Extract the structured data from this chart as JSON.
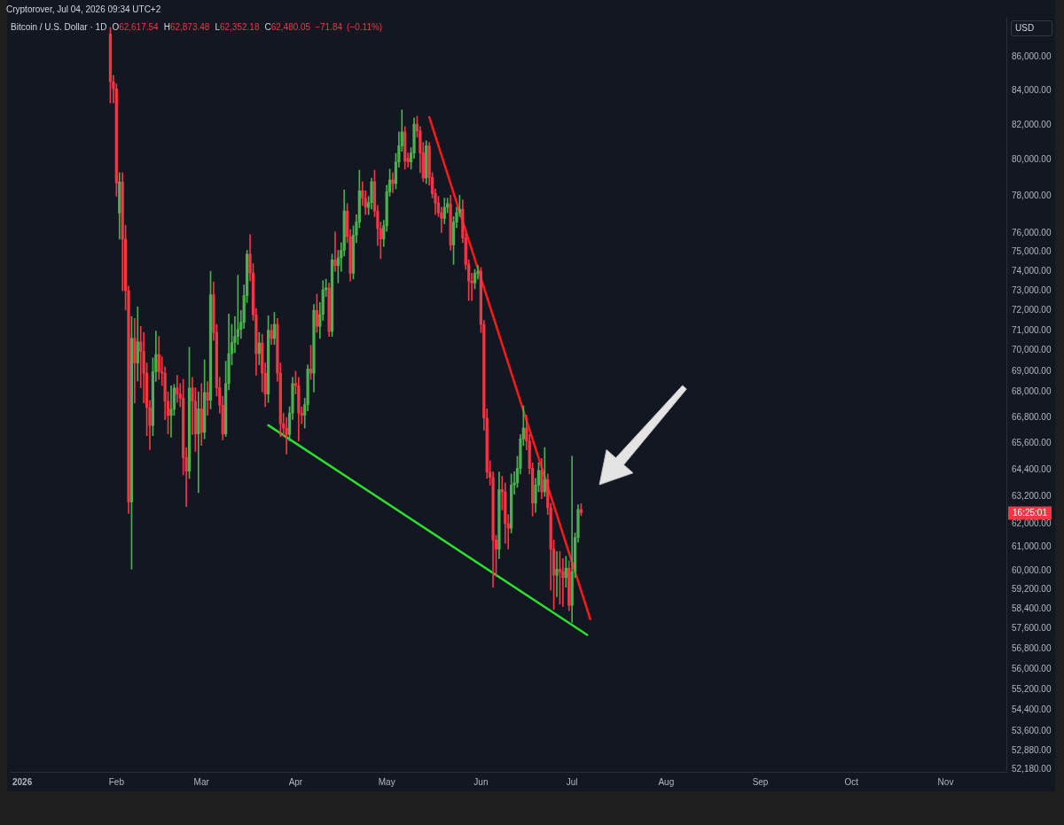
{
  "chart_data": {
    "type": "candlestick",
    "title": "Bitcoin / U.S. Dollar · 1D",
    "subtitle": "O62,617.54 H62,873.48 L62,352.18 C62,480.05 −71.84 (−0.11%)",
    "ylabel": "USD",
    "annotations": [
      "Cryptorover, Jul 04, 2026 09:34 UTC+2",
      "16:25:01"
    ],
    "log": "y",
    "xlim": [
      "2025-12-28",
      "2026-11-21"
    ],
    "xticks": [
      {
        "value": "2026-01-01",
        "label": "2026"
      },
      {
        "value": "2026-02-01",
        "label": "Feb"
      },
      {
        "value": "2026-03-01",
        "label": "Mar"
      },
      {
        "value": "2026-04-01",
        "label": "Apr"
      },
      {
        "value": "2026-05-01",
        "label": "May"
      },
      {
        "value": "2026-06-01",
        "label": "Jun"
      },
      {
        "value": "2026-07-01",
        "label": "Jul"
      },
      {
        "value": "2026-08-01",
        "label": "Aug"
      },
      {
        "value": "2026-09-01",
        "label": "Sep"
      },
      {
        "value": "2026-10-01",
        "label": "Oct"
      },
      {
        "value": "2026-11-01",
        "label": "Nov"
      }
    ],
    "ylim": [
      52100,
      88400
    ],
    "yticks": [
      {
        "value": 86000,
        "label": "86,000.00"
      },
      {
        "value": 84000,
        "label": "84,000.00"
      },
      {
        "value": 82000,
        "label": "82,000.00"
      },
      {
        "value": 80000,
        "label": "80,000.00"
      },
      {
        "value": 78000,
        "label": "78,000.00"
      },
      {
        "value": 76000,
        "label": "76,000.00"
      },
      {
        "value": 75000,
        "label": "75,000.00"
      },
      {
        "value": 74000,
        "label": "74,000.00"
      },
      {
        "value": 73000,
        "label": "73,000.00"
      },
      {
        "value": 72000,
        "label": "72,000.00"
      },
      {
        "value": 71000,
        "label": "71,000.00"
      },
      {
        "value": 70000,
        "label": "70,000.00"
      },
      {
        "value": 69000,
        "label": "69,000.00"
      },
      {
        "value": 68000,
        "label": "68,000.00"
      },
      {
        "value": 66800,
        "label": "66,800.00"
      },
      {
        "value": 65600,
        "label": "65,600.00"
      },
      {
        "value": 64400,
        "label": "64,400.00"
      },
      {
        "value": 63200,
        "label": "63,200.00"
      },
      {
        "value": 62000,
        "label": "62,000.00"
      },
      {
        "value": 61000,
        "label": "61,000.00"
      },
      {
        "value": 60000,
        "label": "60,000.00"
      },
      {
        "value": 59200,
        "label": "59,200.00"
      },
      {
        "value": 58400,
        "label": "58,400.00"
      },
      {
        "value": 57600,
        "label": "57,600.00"
      },
      {
        "value": 56800,
        "label": "56,800.00"
      },
      {
        "value": 56000,
        "label": "56,000.00"
      },
      {
        "value": 55200,
        "label": "55,200.00"
      },
      {
        "value": 54400,
        "label": "54,400.00"
      },
      {
        "value": 53600,
        "label": "53,600.00"
      },
      {
        "value": 52880,
        "label": "52,880.00"
      },
      {
        "value": 52180,
        "label": "52,180.00"
      }
    ],
    "x": [
      "2026-01-30",
      "2026-01-31",
      "2026-02-01",
      "2026-02-02",
      "2026-02-03",
      "2026-02-04",
      "2026-02-05",
      "2026-02-06",
      "2026-02-07",
      "2026-02-08",
      "2026-02-09",
      "2026-02-10",
      "2026-02-11",
      "2026-02-12",
      "2026-02-13",
      "2026-02-14",
      "2026-02-15",
      "2026-02-16",
      "2026-02-17",
      "2026-02-18",
      "2026-02-19",
      "2026-02-20",
      "2026-02-21",
      "2026-02-22",
      "2026-02-23",
      "2026-02-24",
      "2026-02-25",
      "2026-02-26",
      "2026-02-27",
      "2026-02-28",
      "2026-03-01",
      "2026-03-02",
      "2026-03-03",
      "2026-03-04",
      "2026-03-05",
      "2026-03-06",
      "2026-03-07",
      "2026-03-08",
      "2026-03-09",
      "2026-03-10",
      "2026-03-11",
      "2026-03-12",
      "2026-03-13",
      "2026-03-14",
      "2026-03-15",
      "2026-03-16",
      "2026-03-17",
      "2026-03-18",
      "2026-03-19",
      "2026-03-20",
      "2026-03-21",
      "2026-03-22",
      "2026-03-23",
      "2026-03-24",
      "2026-03-25",
      "2026-03-26",
      "2026-03-27",
      "2026-03-28",
      "2026-03-29",
      "2026-03-30",
      "2026-03-31",
      "2026-04-01",
      "2026-04-02",
      "2026-04-03",
      "2026-04-04",
      "2026-04-05",
      "2026-04-06",
      "2026-04-07",
      "2026-04-08",
      "2026-04-09",
      "2026-04-10",
      "2026-04-11",
      "2026-04-12",
      "2026-04-13",
      "2026-04-14",
      "2026-04-15",
      "2026-04-16",
      "2026-04-17",
      "2026-04-18",
      "2026-04-19",
      "2026-04-20",
      "2026-04-21",
      "2026-04-22",
      "2026-04-23",
      "2026-04-24",
      "2026-04-25",
      "2026-04-26",
      "2026-04-27",
      "2026-04-28",
      "2026-04-29",
      "2026-04-30",
      "2026-05-01",
      "2026-05-02",
      "2026-05-03",
      "2026-05-04",
      "2026-05-05",
      "2026-05-06",
      "2026-05-07",
      "2026-05-08",
      "2026-05-09",
      "2026-05-10",
      "2026-05-11",
      "2026-05-12",
      "2026-05-13",
      "2026-05-14",
      "2026-05-15",
      "2026-05-16",
      "2026-05-17",
      "2026-05-18",
      "2026-05-19",
      "2026-05-20",
      "2026-05-21",
      "2026-05-22",
      "2026-05-23",
      "2026-05-24",
      "2026-05-25",
      "2026-05-26",
      "2026-05-27",
      "2026-05-28",
      "2026-05-29",
      "2026-05-30",
      "2026-05-31",
      "2026-06-01",
      "2026-06-02",
      "2026-06-03",
      "2026-06-04",
      "2026-06-05",
      "2026-06-06",
      "2026-06-07",
      "2026-06-08",
      "2026-06-09",
      "2026-06-10",
      "2026-06-11",
      "2026-06-12",
      "2026-06-13",
      "2026-06-14",
      "2026-06-15",
      "2026-06-16",
      "2026-06-17",
      "2026-06-18",
      "2026-06-19",
      "2026-06-20",
      "2026-06-21",
      "2026-06-22",
      "2026-06-23",
      "2026-06-24",
      "2026-06-25",
      "2026-06-26",
      "2026-06-27",
      "2026-06-28",
      "2026-06-29",
      "2026-06-30",
      "2026-07-01",
      "2026-07-02",
      "2026-07-03",
      "2026-07-04"
    ],
    "ohlc": [
      [
        87400,
        87800,
        83270,
        84520
      ],
      [
        84520,
        84900,
        83270,
        84100
      ],
      [
        84100,
        84400,
        78000,
        78730
      ],
      [
        77090,
        79300,
        75690,
        78780
      ],
      [
        78780,
        79300,
        73000,
        75690
      ],
      [
        75690,
        76440,
        72020,
        73000
      ],
      [
        73000,
        73240,
        62450,
        62950
      ],
      [
        62950,
        71700,
        60060,
        70600
      ],
      [
        70600,
        71600,
        67480,
        69390
      ],
      [
        69390,
        72180,
        68530,
        70430
      ],
      [
        70430,
        71200,
        68200,
        69960
      ],
      [
        69960,
        70900,
        67480,
        68900
      ],
      [
        68900,
        69400,
        65950,
        67250
      ],
      [
        67250,
        67600,
        65300,
        66420
      ],
      [
        66420,
        69650,
        65950,
        68970
      ],
      [
        68970,
        70970,
        68500,
        69810
      ],
      [
        69810,
        70700,
        68600,
        68970
      ],
      [
        68970,
        69700,
        68300,
        68900
      ],
      [
        68900,
        69200,
        66690,
        67560
      ],
      [
        67560,
        68000,
        66030,
        66900
      ],
      [
        66900,
        68300,
        65870,
        67180
      ],
      [
        67180,
        68360,
        66900,
        68190
      ],
      [
        68190,
        68800,
        67500,
        67900
      ],
      [
        67900,
        68400,
        67300,
        67700
      ],
      [
        67700,
        68600,
        64160,
        64940
      ],
      [
        64940,
        65400,
        62750,
        64330
      ],
      [
        64330,
        70170,
        64000,
        68190
      ],
      [
        68190,
        68700,
        66000,
        67560
      ],
      [
        67560,
        68200,
        65220,
        66030
      ],
      [
        66030,
        68000,
        63370,
        67200
      ],
      [
        67200,
        68400,
        65500,
        66100
      ],
      [
        66100,
        69550,
        65800,
        67980
      ],
      [
        67980,
        68500,
        66900,
        67600
      ],
      [
        67600,
        74000,
        67200,
        72800
      ],
      [
        72800,
        73450,
        70500,
        70900
      ],
      [
        70900,
        71300,
        67800,
        68200
      ],
      [
        68200,
        68700,
        67000,
        67370
      ],
      [
        67370,
        67800,
        65750,
        66030
      ],
      [
        66030,
        69480,
        65900,
        68400
      ],
      [
        68400,
        71820,
        68100,
        69850
      ],
      [
        69850,
        71300,
        69300,
        70400
      ],
      [
        70400,
        71700,
        69900,
        70700
      ],
      [
        70700,
        73800,
        70300,
        71050
      ],
      [
        71050,
        72000,
        70600,
        71400
      ],
      [
        71400,
        73300,
        71100,
        72750
      ],
      [
        72750,
        75100,
        72400,
        74900
      ],
      [
        74900,
        75930,
        73500,
        73920
      ],
      [
        73920,
        74400,
        71500,
        71780
      ],
      [
        71780,
        72100,
        68800,
        69850
      ],
      [
        69850,
        70900,
        69300,
        70380
      ],
      [
        70380,
        70800,
        68000,
        68900
      ],
      [
        68900,
        69400,
        67300,
        67900
      ],
      [
        67900,
        71730,
        67500,
        71000
      ],
      [
        71000,
        71300,
        70300,
        70600
      ],
      [
        70600,
        71900,
        70300,
        71300
      ],
      [
        71300,
        71600,
        68500,
        68900
      ],
      [
        68900,
        69400,
        65900,
        66500
      ],
      [
        66500,
        67000,
        65900,
        66300
      ],
      [
        66300,
        66800,
        65100,
        66000
      ],
      [
        66000,
        67300,
        65700,
        67000
      ],
      [
        67000,
        68700,
        66700,
        68400
      ],
      [
        68400,
        69000,
        67900,
        68300
      ],
      [
        68300,
        68700,
        65700,
        67000
      ],
      [
        67000,
        67300,
        66500,
        66900
      ],
      [
        66900,
        67700,
        66300,
        67400
      ],
      [
        67400,
        69300,
        67100,
        69100
      ],
      [
        69100,
        70260,
        68600,
        68900
      ],
      [
        68900,
        72300,
        68000,
        72000
      ],
      [
        72000,
        72830,
        70900,
        71200
      ],
      [
        71200,
        72400,
        70600,
        71800
      ],
      [
        71800,
        73520,
        71500,
        73050
      ],
      [
        73050,
        73600,
        72700,
        73150
      ],
      [
        73150,
        73400,
        70700,
        70950
      ],
      [
        70950,
        74900,
        70700,
        74600
      ],
      [
        74600,
        76080,
        74000,
        74300
      ],
      [
        74300,
        75100,
        73400,
        74700
      ],
      [
        74700,
        75500,
        74000,
        75100
      ],
      [
        75100,
        78350,
        74800,
        77200
      ],
      [
        77200,
        77600,
        75500,
        75830
      ],
      [
        75830,
        76200,
        73500,
        73900
      ],
      [
        73900,
        76400,
        73600,
        75900
      ],
      [
        75900,
        77000,
        75500,
        76600
      ],
      [
        76600,
        79440,
        76300,
        78300
      ],
      [
        78300,
        78800,
        77500,
        77900
      ],
      [
        77900,
        78300,
        77000,
        77400
      ],
      [
        77400,
        78000,
        77000,
        77650
      ],
      [
        77650,
        79000,
        77300,
        78800
      ],
      [
        78800,
        79440,
        76900,
        77200
      ],
      [
        77200,
        77500,
        75350,
        76250
      ],
      [
        76250,
        76600,
        74660,
        75700
      ],
      [
        75700,
        76700,
        75300,
        76400
      ],
      [
        76400,
        78600,
        76100,
        78250
      ],
      [
        78250,
        79500,
        78000,
        78900
      ],
      [
        78900,
        79300,
        78200,
        78700
      ],
      [
        78700,
        80380,
        78400,
        79900
      ],
      [
        79900,
        81600,
        79600,
        80800
      ],
      [
        80800,
        82860,
        80500,
        81600
      ],
      [
        81600,
        81900,
        79500,
        79950
      ],
      [
        80100,
        80400,
        79600,
        79900
      ],
      [
        79900,
        80700,
        79500,
        80400
      ],
      [
        80400,
        82400,
        80100,
        82050
      ],
      [
        82050,
        82500,
        81300,
        81650
      ],
      [
        81650,
        81900,
        79300,
        80400
      ],
      [
        80400,
        81000,
        78800,
        79000
      ],
      [
        79000,
        81100,
        78700,
        80800
      ],
      [
        80800,
        81000,
        78600,
        79040
      ],
      [
        79040,
        79300,
        77900,
        78150
      ],
      [
        78150,
        78400,
        77000,
        77630
      ],
      [
        77630,
        78000,
        76900,
        77100
      ],
      [
        77100,
        77400,
        76040,
        76800
      ],
      [
        76800,
        77900,
        76500,
        77400
      ],
      [
        77400,
        77900,
        77100,
        77600
      ],
      [
        77600,
        78050,
        75100,
        75380
      ],
      [
        75380,
        76900,
        74360,
        76600
      ],
      [
        76600,
        77400,
        76300,
        77100
      ],
      [
        77100,
        78050,
        76900,
        77300
      ],
      [
        77300,
        77800,
        75500,
        75750
      ],
      [
        75750,
        76000,
        74100,
        74360
      ],
      [
        74360,
        74600,
        72500,
        73500
      ],
      [
        73500,
        73900,
        72500,
        73400
      ],
      [
        73400,
        74100,
        73100,
        73900
      ],
      [
        73900,
        74300,
        73600,
        74000
      ],
      [
        74000,
        74200,
        70900,
        71300
      ],
      [
        71300,
        71500,
        66200,
        66770
      ],
      [
        66770,
        67200,
        64000,
        64280
      ],
      [
        64280,
        64800,
        63700,
        64050
      ],
      [
        64050,
        64300,
        59300,
        61300
      ],
      [
        61300,
        61500,
        59750,
        60900
      ],
      [
        60900,
        64290,
        60500,
        63500
      ],
      [
        63500,
        64100,
        62600,
        63400
      ],
      [
        63400,
        63800,
        61150,
        62000
      ],
      [
        62000,
        62400,
        60910,
        61800
      ],
      [
        61800,
        64200,
        61600,
        63700
      ],
      [
        63700,
        64300,
        63300,
        63800
      ],
      [
        63800,
        65000,
        63600,
        64450
      ],
      [
        64450,
        66000,
        64200,
        65800
      ],
      [
        65800,
        67340,
        65500,
        66300
      ],
      [
        66300,
        66900,
        65300,
        65700
      ],
      [
        65700,
        66000,
        64200,
        64450
      ],
      [
        64450,
        64700,
        62330,
        62900
      ],
      [
        62900,
        64000,
        62500,
        63700
      ],
      [
        63700,
        64700,
        63400,
        64360
      ],
      [
        64360,
        64900,
        63100,
        63400
      ],
      [
        63400,
        65400,
        63200,
        63950
      ],
      [
        63950,
        64200,
        62400,
        62700
      ],
      [
        62700,
        62900,
        59180,
        60900
      ],
      [
        60900,
        61300,
        58380,
        59800
      ],
      [
        59800,
        60800,
        58900,
        60050
      ],
      [
        60050,
        60800,
        58600,
        59950
      ],
      [
        59950,
        60500,
        58500,
        59700
      ],
      [
        59700,
        60600,
        59300,
        60100
      ],
      [
        60100,
        60400,
        58330,
        58550
      ],
      [
        58550,
        65000,
        57850,
        59950
      ],
      [
        59950,
        61600,
        59700,
        61400
      ],
      [
        61400,
        62830,
        61200,
        62620
      ],
      [
        62617.54,
        62873.48,
        62352.18,
        62480.05
      ]
    ],
    "colors": [
      "#f23645",
      "#f23645",
      "#f23645",
      "#4caf50",
      "#f23645",
      "#f23645",
      "#f23645",
      "#4caf50",
      "#f23645",
      "#4caf50",
      "#f23645",
      "#f23645",
      "#f23645",
      "#f23645",
      "#4caf50",
      "#4caf50",
      "#f23645",
      "#f23645",
      "#f23645",
      "#f23645",
      "#4caf50",
      "#4caf50",
      "#f23645",
      "#f23645",
      "#f23645",
      "#f23645",
      "#4caf50",
      "#f23645",
      "#f23645",
      "#4caf50",
      "#f23645",
      "#4caf50",
      "#f23645",
      "#4caf50",
      "#f23645",
      "#f23645",
      "#f23645",
      "#f23645",
      "#4caf50",
      "#4caf50",
      "#4caf50",
      "#4caf50",
      "#4caf50",
      "#4caf50",
      "#4caf50",
      "#4caf50",
      "#f23645",
      "#f23645",
      "#f23645",
      "#4caf50",
      "#f23645",
      "#f23645",
      "#4caf50",
      "#f23645",
      "#4caf50",
      "#f23645",
      "#f23645",
      "#f23645",
      "#f23645",
      "#4caf50",
      "#4caf50",
      "#f23645",
      "#f23645",
      "#f23645",
      "#4caf50",
      "#4caf50",
      "#f23645",
      "#4caf50",
      "#f23645",
      "#4caf50",
      "#4caf50",
      "#4caf50",
      "#f23645",
      "#4caf50",
      "#f23645",
      "#4caf50",
      "#4caf50",
      "#4caf50",
      "#f23645",
      "#f23645",
      "#4caf50",
      "#4caf50",
      "#4caf50",
      "#f23645",
      "#f23645",
      "#4caf50",
      "#4caf50",
      "#f23645",
      "#f23645",
      "#f23645",
      "#4caf50",
      "#4caf50",
      "#4caf50",
      "#f23645",
      "#4caf50",
      "#4caf50",
      "#4caf50",
      "#f23645",
      "#f23645",
      "#4caf50",
      "#4caf50",
      "#f23645",
      "#f23645",
      "#f23645",
      "#4caf50",
      "#f23645",
      "#f23645",
      "#f23645",
      "#f23645",
      "#f23645",
      "#4caf50",
      "#4caf50",
      "#f23645",
      "#4caf50",
      "#4caf50",
      "#4caf50",
      "#f23645",
      "#f23645",
      "#f23645",
      "#f23645",
      "#4caf50",
      "#4caf50",
      "#f23645",
      "#f23645",
      "#f23645",
      "#f23645",
      "#f23645",
      "#f23645",
      "#4caf50",
      "#f23645",
      "#f23645",
      "#f23645",
      "#4caf50",
      "#4caf50",
      "#4caf50",
      "#4caf50",
      "#4caf50",
      "#f23645",
      "#f23645",
      "#f23645",
      "#4caf50",
      "#4caf50",
      "#f23645",
      "#4caf50",
      "#f23645",
      "#f23645",
      "#f23645",
      "#4caf50",
      "#f23645",
      "#f23645",
      "#4caf50",
      "#f23645",
      "#4caf50",
      "#4caf50",
      "#4caf50",
      "#f23645"
    ],
    "series": [
      {
        "type": "line",
        "color": "#ff1a1a",
        "x": [
          "2026-05-15",
          "2026-07-07"
        ],
        "values": [
          82450,
          57990
        ]
      },
      {
        "type": "line",
        "color": "#2ee02e",
        "x": [
          "2026-03-23",
          "2026-07-06"
        ],
        "values": [
          66430,
          57350
        ]
      }
    ]
  }
}
